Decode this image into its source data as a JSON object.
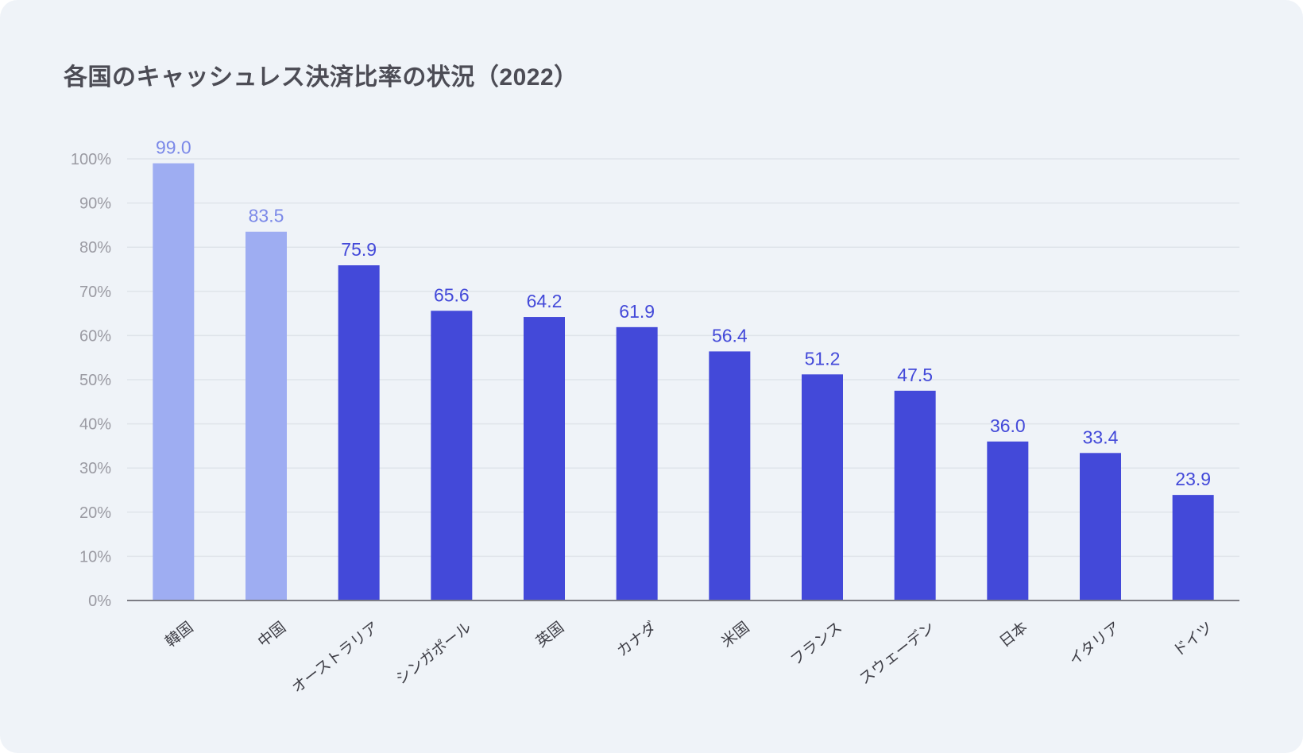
{
  "chart_data": {
    "type": "bar",
    "title": "各国のキャッシュレス決済比率の状況（2022）",
    "xlabel": "",
    "ylabel": "",
    "categories": [
      "韓国",
      "中国",
      "オーストラリア",
      "シンガポール",
      "英国",
      "カナダ",
      "米国",
      "フランス",
      "スウェーデン",
      "日本",
      "イタリア",
      "ドイツ"
    ],
    "values": [
      99.0,
      83.5,
      75.9,
      65.6,
      64.2,
      61.9,
      56.4,
      51.2,
      47.5,
      36.0,
      33.4,
      23.9
    ],
    "value_labels": [
      "99.0",
      "83.5",
      "75.9",
      "65.6",
      "64.2",
      "61.9",
      "56.4",
      "51.2",
      "47.5",
      "36.0",
      "33.4",
      "23.9"
    ],
    "highlighted": [
      true,
      true,
      false,
      false,
      false,
      false,
      false,
      false,
      false,
      false,
      false,
      false
    ],
    "ylim": [
      0,
      100
    ],
    "yticks": [
      0,
      10,
      20,
      30,
      40,
      50,
      60,
      70,
      80,
      90,
      100
    ],
    "ytick_labels": [
      "0%",
      "10%",
      "20%",
      "30%",
      "40%",
      "50%",
      "60%",
      "70%",
      "80%",
      "90%",
      "100%"
    ],
    "grid": true,
    "legend": "none",
    "colors": {
      "bar": "#4349d9",
      "bar_highlight": "#9eadf2",
      "label": "#4349d9",
      "label_highlight": "#7b89e8",
      "grid": "#dfe4ea",
      "axis": "#7d7d85"
    }
  }
}
